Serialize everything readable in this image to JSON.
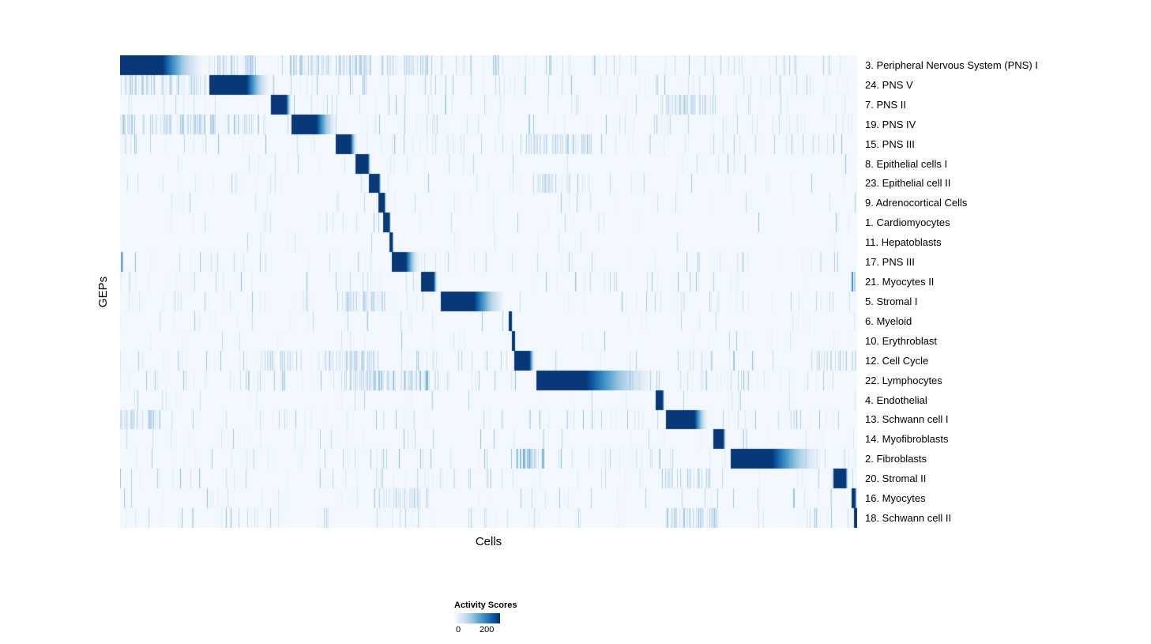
{
  "chart_data": {
    "type": "heatmap",
    "title": "",
    "xlabel": "Cells",
    "ylabel": "GEPs",
    "x_axis_note": "individual cells, columns unlabeled",
    "colormap": {
      "low": "#f7fbff",
      "high": "#08306b",
      "name": "Blues"
    },
    "legend": {
      "title": "Activity Scores",
      "min_label": "0",
      "max_label": "200"
    },
    "value_range": [
      0,
      200
    ],
    "rows": [
      {
        "label": "3. Peripheral Nervous System (PNS) I",
        "start": 0.0,
        "dark": 0.057,
        "fade": 0.061,
        "noise": 0.5,
        "clusters": [
          [
            0.12,
            0.185,
            0.3
          ],
          [
            0.23,
            0.34,
            0.32
          ],
          [
            0.35,
            0.42,
            0.25
          ]
        ]
      },
      {
        "label": "24. PNS V",
        "start": 0.121,
        "dark": 0.05,
        "fade": 0.035,
        "noise": 0.4,
        "clusters": [
          [
            0.0,
            0.115,
            0.3
          ]
        ]
      },
      {
        "label": "7. PNS II",
        "start": 0.204,
        "dark": 0.021,
        "fade": 0.008,
        "noise": 0.3,
        "clusters": [
          [
            0.73,
            0.81,
            0.22
          ]
        ]
      },
      {
        "label": "19. PNS IV",
        "start": 0.232,
        "dark": 0.034,
        "fade": 0.03,
        "noise": 0.45,
        "clusters": [
          [
            0.0,
            0.2,
            0.3
          ]
        ]
      },
      {
        "label": "15. PNS III",
        "start": 0.292,
        "dark": 0.02,
        "fade": 0.01,
        "noise": 0.45,
        "clusters": [
          [
            0.55,
            0.64,
            0.28
          ]
        ]
      },
      {
        "label": "8. Epithelial cells I",
        "start": 0.319,
        "dark": 0.017,
        "fade": 0.004,
        "noise": 0.18,
        "clusters": []
      },
      {
        "label": "23. Epithelial cell II",
        "start": 0.337,
        "dark": 0.014,
        "fade": 0.003,
        "noise": 0.18,
        "clusters": [
          [
            0.56,
            0.61,
            0.22
          ]
        ]
      },
      {
        "label": "9. Adrenocortical Cells",
        "start": 0.35,
        "dark": 0.008,
        "fade": 0.003,
        "noise": 0.12,
        "clusters": []
      },
      {
        "label": "1. Cardiomyocytes",
        "start": 0.356,
        "dark": 0.009,
        "fade": 0.002,
        "noise": 0.15,
        "clusters": []
      },
      {
        "label": "11. Hepatoblasts",
        "start": 0.365,
        "dark": 0.004,
        "fade": 0.002,
        "noise": 0.1,
        "clusters": []
      },
      {
        "label": "17. PNS III",
        "start": 0.368,
        "dark": 0.019,
        "fade": 0.02,
        "noise": 0.35,
        "clusters": [
          [
            0.0,
            0.006,
            0.85
          ]
        ]
      },
      {
        "label": "21. Myocytes II",
        "start": 0.408,
        "dark": 0.017,
        "fade": 0.006,
        "noise": 0.3,
        "clusters": [
          [
            0.992,
            1.0,
            0.7
          ]
        ]
      },
      {
        "label": "5. Stromal I",
        "start": 0.435,
        "dark": 0.045,
        "fade": 0.046,
        "noise": 0.35,
        "clusters": [
          [
            0.3,
            0.36,
            0.25
          ]
        ]
      },
      {
        "label": "6. Myeloid",
        "start": 0.527,
        "dark": 0.004,
        "fade": 0.001,
        "noise": 0.15,
        "clusters": []
      },
      {
        "label": "10. Erythroblast",
        "start": 0.531,
        "dark": 0.004,
        "fade": 0.001,
        "noise": 0.15,
        "clusters": []
      },
      {
        "label": "12. Cell Cycle",
        "start": 0.534,
        "dark": 0.021,
        "fade": 0.008,
        "noise": 0.4,
        "clusters": [
          [
            0.19,
            0.25,
            0.3
          ],
          [
            0.28,
            0.35,
            0.3
          ],
          [
            0.94,
            1.0,
            0.3
          ]
        ]
      },
      {
        "label": "22. Lymphocytes",
        "start": 0.564,
        "dark": 0.068,
        "fade": 0.103,
        "noise": 0.45,
        "clusters": [
          [
            0.3,
            0.42,
            0.4
          ]
        ]
      },
      {
        "label": "4. Endothelial",
        "start": 0.726,
        "dark": 0.01,
        "fade": 0.002,
        "noise": 0.15,
        "clusters": []
      },
      {
        "label": "13. Schwann cell I",
        "start": 0.74,
        "dark": 0.039,
        "fade": 0.02,
        "noise": 0.35,
        "clusters": [
          [
            0.0,
            0.06,
            0.3
          ]
        ]
      },
      {
        "label": "14. Myofibroblasts",
        "start": 0.804,
        "dark": 0.014,
        "fade": 0.004,
        "noise": 0.25,
        "clusters": []
      },
      {
        "label": "2. Fibroblasts",
        "start": 0.828,
        "dark": 0.056,
        "fade": 0.076,
        "noise": 0.4,
        "clusters": [
          [
            0.53,
            0.575,
            0.45
          ]
        ]
      },
      {
        "label": "20. Stromal II",
        "start": 0.967,
        "dark": 0.017,
        "fade": 0.004,
        "noise": 0.35,
        "clusters": [
          [
            0.73,
            0.8,
            0.3
          ]
        ]
      },
      {
        "label": "16. Myocytes",
        "start": 0.992,
        "dark": 0.005,
        "fade": 0.002,
        "noise": 0.25,
        "clusters": [
          [
            0.35,
            0.42,
            0.22
          ]
        ]
      },
      {
        "label": "18. Schwann cell II",
        "start": 0.995,
        "dark": 0.005,
        "fade": 0.0,
        "noise": 0.35,
        "clusters": [
          [
            0.74,
            0.81,
            0.35
          ]
        ]
      }
    ]
  }
}
